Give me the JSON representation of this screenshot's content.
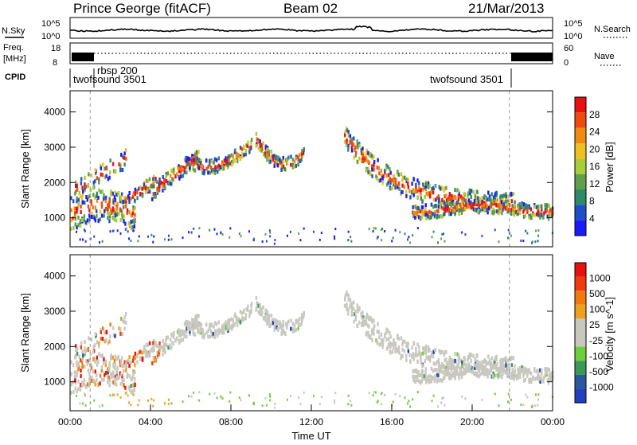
{
  "header": {
    "station": "Prince George (fitACF)",
    "beam": "Beam 02",
    "date": "21/Mar/2013"
  },
  "noise_panel": {
    "left_label": "N.Sky",
    "right_label": "N.Search",
    "tick_top": "10^5",
    "tick_bottom": "10^0",
    "right_tick_top": "10^5",
    "right_tick_bottom": "10^0"
  },
  "freq_panel": {
    "left_label_line1": "Freq.",
    "left_label_line2": "[MHz]",
    "right_label": "Nave",
    "tick_left_top": "18",
    "tick_left_bottom": "8",
    "tick_right_top": "60",
    "tick_right_bottom": "0"
  },
  "cpid_panel": {
    "label": "CPID",
    "entries": [
      "twofsound 3501",
      "rbsp 200",
      "twofsound 3501"
    ]
  },
  "colors": {
    "power_scale": [
      "#1a1aff",
      "#1f4fc8",
      "#2f8a6a",
      "#5fa04a",
      "#a8cc3a",
      "#f0c020",
      "#f08a10",
      "#f04a10",
      "#e81010"
    ],
    "velocity_scale": [
      "#2040c0",
      "#2a58a0",
      "#3a9a5a",
      "#6fcf3a",
      "#c8c8c0",
      "#c8c8c0",
      "#f0a020",
      "#f07a10",
      "#f03a10",
      "#e81010"
    ],
    "ground_scatter": "#c8c8c0"
  },
  "chart_data": [
    {
      "type": "heatmap",
      "title": "",
      "xlabel": "",
      "ylabel": "Slant Range [km]",
      "colorbar_label": "Power [dB]",
      "colorbar_ticks": [
        "4",
        "8",
        "12",
        "16",
        "20",
        "24",
        "28"
      ],
      "yticks": [
        "1000",
        "2000",
        "3000",
        "4000"
      ],
      "ylim": [
        180,
        4600
      ],
      "xlim": [
        0,
        24
      ]
    },
    {
      "type": "heatmap",
      "title": "",
      "xlabel": "Time UT",
      "ylabel": "Slant Range [km]",
      "colorbar_label": "Velocity [m s^-1]",
      "colorbar_ticks": [
        "1000",
        "500",
        "100",
        "25",
        "-25",
        "-100",
        "-500",
        "-1000"
      ],
      "yticks": [
        "1000",
        "2000",
        "3000",
        "4000"
      ],
      "ylim": [
        180,
        4600
      ],
      "xlim": [
        0,
        24
      ],
      "xticks": [
        "00:00",
        "04:00",
        "08:00",
        "12:00",
        "16:00",
        "20:00",
        "00:00"
      ]
    }
  ]
}
